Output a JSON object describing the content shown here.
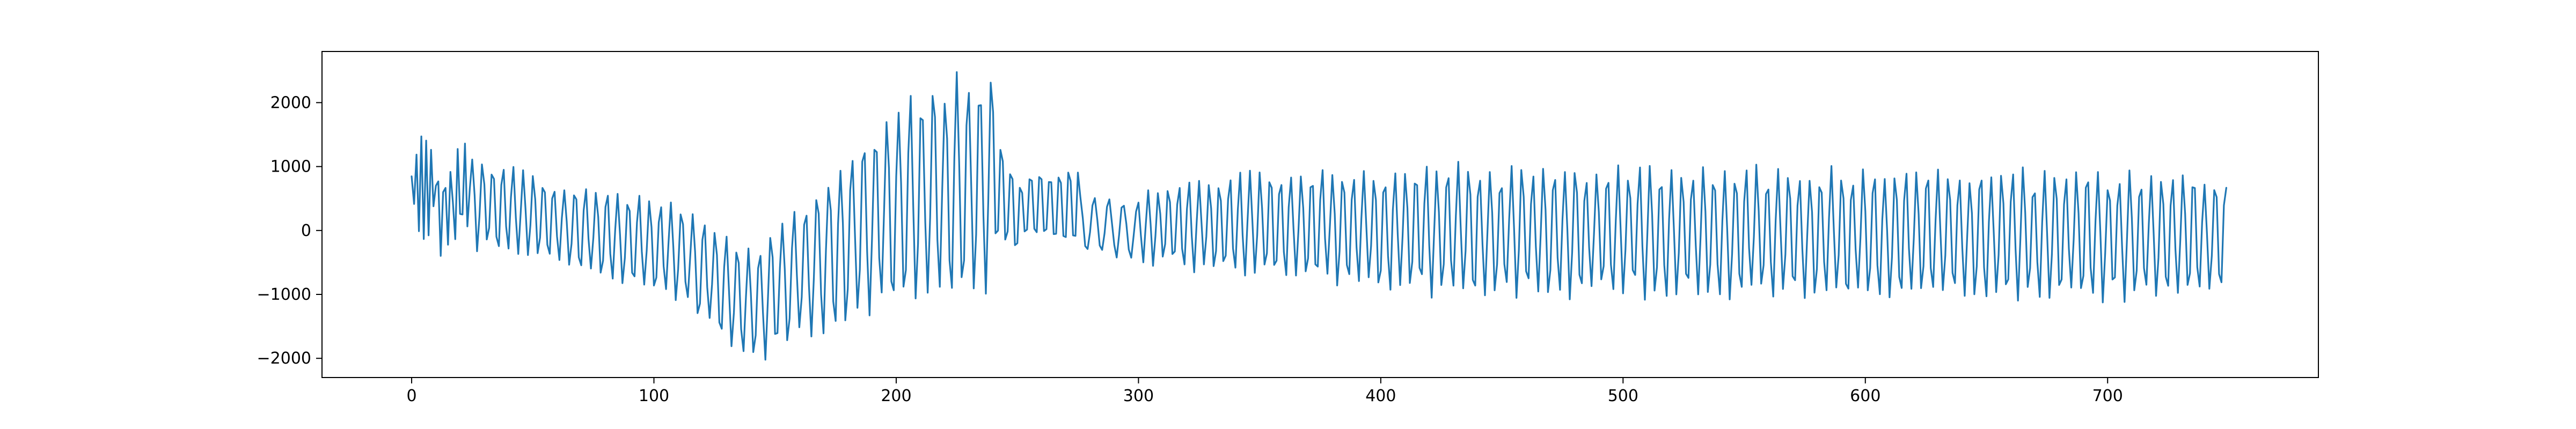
{
  "chart_data": {
    "type": "line",
    "title": "",
    "xlabel": "",
    "ylabel": "",
    "xlim": [
      -37,
      787
    ],
    "ylim": [
      -2300,
      2800
    ],
    "grid": false,
    "legend": "none",
    "x_ticks": [
      0,
      100,
      200,
      300,
      400,
      500,
      600,
      700
    ],
    "y_ticks": [
      -2000,
      -1000,
      0,
      1000,
      2000
    ],
    "x_tick_labels": [
      "0",
      "100",
      "200",
      "300",
      "400",
      "500",
      "600",
      "700"
    ],
    "y_tick_labels": [
      "−2000",
      "−1000",
      "0",
      "1000",
      "2000"
    ],
    "series": [
      {
        "color": "#1f77b4",
        "x_start": 0,
        "x_end": 749,
        "segments": [
          {
            "x0": 0,
            "x1": 10,
            "period": 2.2,
            "center_start": 700,
            "center_end": 700,
            "amp_start": 500,
            "amp_end": 1100
          },
          {
            "x0": 10,
            "x1": 24,
            "period": 2.8,
            "center_start": 250,
            "center_end": 650,
            "amp_start": 650,
            "amp_end": 750
          },
          {
            "x0": 24,
            "x1": 60,
            "period": 4.2,
            "center_start": 450,
            "center_end": 150,
            "amp_start": 700,
            "amp_end": 600
          },
          {
            "x0": 60,
            "x1": 110,
            "period": 4.4,
            "center_start": 100,
            "center_end": -350,
            "amp_start": 650,
            "amp_end": 700
          },
          {
            "x0": 110,
            "x1": 140,
            "period": 4.6,
            "center_start": -350,
            "center_end": -1200,
            "amp_start": 700,
            "amp_end": 850
          },
          {
            "x0": 140,
            "x1": 150,
            "period": 4.6,
            "center_start": -1200,
            "center_end": -900,
            "amp_start": 850,
            "amp_end": 900
          },
          {
            "x0": 150,
            "x1": 200,
            "period": 4.8,
            "center_start": -900,
            "center_end": 400,
            "amp_start": 900,
            "amp_end": 1500
          },
          {
            "x0": 200,
            "x1": 240,
            "period": 4.8,
            "center_start": 400,
            "center_end": 800,
            "amp_start": 1500,
            "amp_end": 1650
          },
          {
            "x0": 240,
            "x1": 252,
            "period": 4.0,
            "center_start": 700,
            "center_end": 200,
            "amp_start": 900,
            "amp_end": 600
          },
          {
            "x0": 252,
            "x1": 275,
            "period": 4.0,
            "center_start": 400,
            "center_end": 350,
            "amp_start": 500,
            "amp_end": 700
          },
          {
            "x0": 275,
            "x1": 300,
            "period": 6.0,
            "center_start": 100,
            "center_end": 0,
            "amp_start": 450,
            "amp_end": 400
          },
          {
            "x0": 300,
            "x1": 360,
            "period": 4.2,
            "center_start": 50,
            "center_end": 100,
            "amp_start": 550,
            "amp_end": 850
          },
          {
            "x0": 360,
            "x1": 420,
            "period": 4.3,
            "center_start": 100,
            "center_end": 0,
            "amp_start": 850,
            "amp_end": 950
          },
          {
            "x0": 420,
            "x1": 749,
            "period": 4.4,
            "center_start": 0,
            "center_end": -100,
            "amp_start": 950,
            "amp_end": 950
          }
        ]
      }
    ]
  }
}
